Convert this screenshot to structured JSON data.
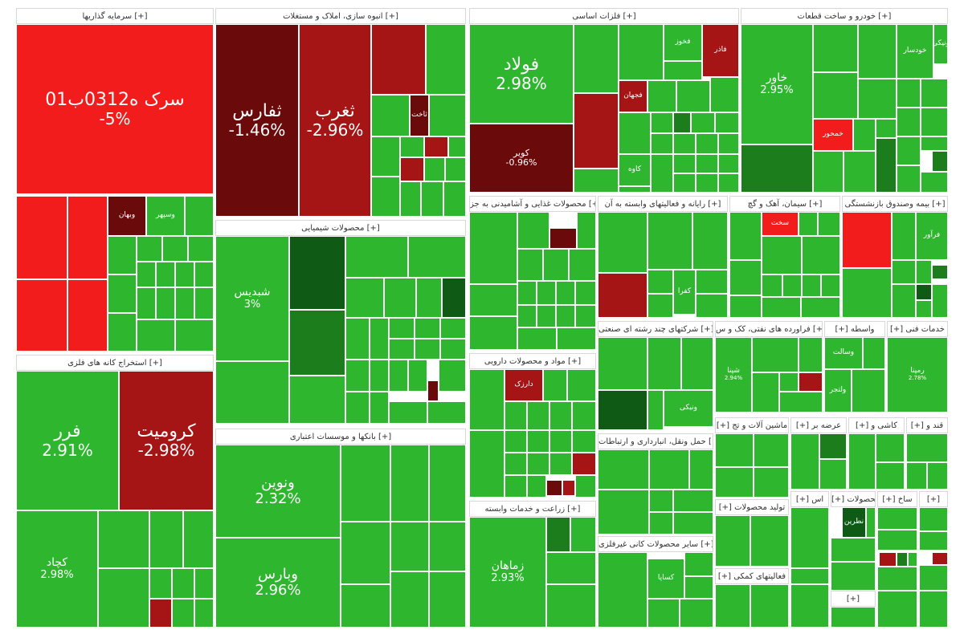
{
  "sectors": [
    {
      "label": "سرمایه گذاریها [+]"
    },
    {
      "label": "انبوه سازی، املاک و مستغلات [+]"
    },
    {
      "label": "فلزات اساسی [+]"
    },
    {
      "label": "خودرو و ساخت قطعات [+]"
    },
    {
      "label": "محصولات شیمیایی [+]"
    },
    {
      "label": "استخراج کانه های فلزی [+]"
    },
    {
      "label": "بانکها و موسسات اعتباری [+]"
    },
    {
      "label": "محصولات غذایی و آشامیدنی به جز [+]"
    },
    {
      "label": "رایانه و فعالیتهای وابسته به آن [+]"
    },
    {
      "label": "سیمان، آهک و گچ [+]"
    },
    {
      "label": "بیمه وصندوق بازنشستگی [+]"
    },
    {
      "label": "شرکتهای چند رشته ای صنعتی [+]"
    },
    {
      "label": "فراورده های نفتی، کک و س [+]"
    },
    {
      "label": "[+] واسطه"
    },
    {
      "label": "[+] خدمات فنی"
    },
    {
      "label": "مواد و محصولات دارویی [+]"
    },
    {
      "label": "حمل ونقل، انبارداری و ارتباطات [+]"
    },
    {
      "label": "زراعت و خدمات وابسته [+]"
    },
    {
      "label": "سایر محصولات کانی غیرفلزی [+]"
    },
    {
      "label": "[+] ماشین آلات و تج"
    },
    {
      "label": "[+] عرضه بر"
    },
    {
      "label": "[+] کاشی و"
    },
    {
      "label": "[+] قند و"
    },
    {
      "label": "[+] تولید محصولات"
    },
    {
      "label": "[+] اس"
    },
    {
      "label": "[+] محصولات"
    },
    {
      "label": "[+] ساخ"
    },
    {
      "label": "[+]"
    },
    {
      "label": "[+] فعالیتهای کمکی"
    },
    {
      "label": "[+]"
    }
  ],
  "stocks": [
    {
      "symbol": "سرک ه0312ب01",
      "change": "-5%"
    },
    {
      "symbol": "ثفارس",
      "change": "-1.46%"
    },
    {
      "symbol": "ثغرب",
      "change": "-2.96%"
    },
    {
      "symbol": "فولاد",
      "change": "2.98%"
    },
    {
      "symbol": "کویر",
      "change": "-0.96%"
    },
    {
      "symbol": "خاور",
      "change": "2.95%"
    },
    {
      "symbol": "شبدیس",
      "change": "3%"
    },
    {
      "symbol": "فرر",
      "change": "2.91%"
    },
    {
      "symbol": "کرومیت",
      "change": "-2.98%"
    },
    {
      "symbol": "کچاد",
      "change": "2.98%"
    },
    {
      "symbol": "ونوین",
      "change": "2.32%"
    },
    {
      "symbol": "وبارس",
      "change": "2.96%"
    },
    {
      "symbol": "زماهان",
      "change": "2.93%"
    },
    {
      "symbol": "وبهان",
      "change": ""
    },
    {
      "symbol": "ونیکی",
      "change": ""
    },
    {
      "symbol": "وسپهر",
      "change": ""
    },
    {
      "symbol": "خمحور",
      "change": ""
    },
    {
      "symbol": "خودسار",
      "change": ""
    },
    {
      "symbol": "ثاخت",
      "change": ""
    },
    {
      "symbol": "فاذر",
      "change": ""
    },
    {
      "symbol": "فجهان",
      "change": ""
    },
    {
      "symbol": "کفرا",
      "change": ""
    },
    {
      "symbol": "کاوه",
      "change": ""
    },
    {
      "symbol": "فخوز",
      "change": ""
    },
    {
      "symbol": "دارزک",
      "change": ""
    },
    {
      "symbol": "ونیکی",
      "change": ""
    },
    {
      "symbol": "ولتجر",
      "change": ""
    },
    {
      "symbol": "سخت",
      "change": ""
    },
    {
      "symbol": "نطرین",
      "change": ""
    },
    {
      "symbol": "وسالت",
      "change": ""
    },
    {
      "symbol": "کساپا",
      "change": ""
    },
    {
      "symbol": "رمپنا",
      "change": "2.78%"
    },
    {
      "symbol": "شپنا",
      "change": "2.94%"
    },
    {
      "symbol": "فرآور",
      "change": ""
    }
  ],
  "colors": {
    "green": "#2fb62f",
    "dark_green": "#1c7d1c",
    "red": "#f21c1c",
    "dark_red": "#a51515",
    "maroon": "#6b0a0a"
  }
}
